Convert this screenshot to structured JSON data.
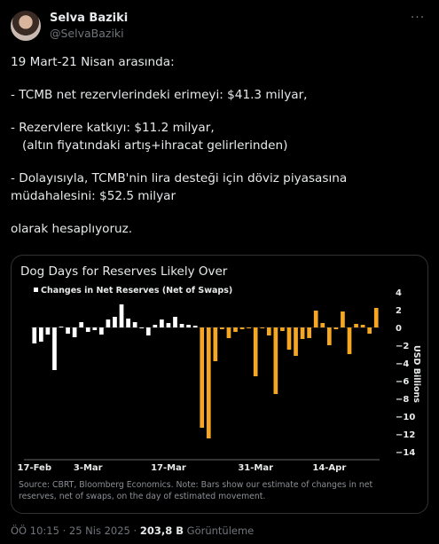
{
  "author": {
    "name": "Selva Baziki",
    "handle": "@SelvaBaziki",
    "more_icon": "more-dots-icon"
  },
  "tweet": {
    "lines": [
      "19 Mart-21 Nisan arasında:",
      "- TCMB net rezervlerindeki erimeyi: $41.3 milyar,",
      "- Rezervlere katkıyı: $11.2 milyar,",
      "   (altın fiyatındaki artış+ihracat gelirlerinden)",
      "- Dolayısıyla, TCMB'nin lira desteği için döviz piyasasına müdahalesini: $52.5 milyar",
      "olarak hesaplıyoruz."
    ]
  },
  "footer": {
    "time": "ÖÖ 10:15",
    "sep1": "·",
    "date": "25 Nis 2025",
    "sep2": "·",
    "views": "203,8 B",
    "views_label": "Görüntüleme"
  },
  "colors": {
    "bar_before": "#ffffff",
    "bar_estimated": "#f5a623",
    "text_muted": "#71767b"
  },
  "chart_data": {
    "type": "bar",
    "title": "Dog Days for Reserves Likely Over",
    "legend": "Changes in Net Reserves (Net of Swaps)",
    "legend_position": "top-left",
    "ylabel": "USD Billions",
    "ylim": [
      -14,
      4
    ],
    "yticks": [
      4,
      2,
      0,
      -2,
      -4,
      -6,
      -8,
      -10,
      -12,
      -14
    ],
    "xtick_labels": [
      "17-Feb",
      "3-Mar",
      "17-Mar",
      "31-Mar",
      "14-Apr"
    ],
    "xtick_index": [
      0,
      10,
      20,
      30,
      40
    ],
    "grid": false,
    "series": [
      {
        "values": [
          -1.8,
          -1.6,
          -0.8,
          -4.8,
          0.1,
          -0.7,
          -1.1,
          0.6,
          -0.5,
          -0.3,
          -0.8,
          0.9,
          1.2,
          2.6,
          1.0,
          0.6,
          -0.1,
          -0.9,
          0.3,
          0.9,
          0.5,
          1.2,
          0.4,
          0.3,
          0.2
        ],
        "color": "#ffffff"
      },
      {
        "values": [
          -11.3,
          -12.5,
          -3.8,
          -0.2,
          -1.2,
          -0.5,
          -0.2,
          -0.1,
          -5.5,
          -0.1,
          -0.9,
          -7.5,
          -0.4,
          -2.5,
          -3.2,
          -1.3,
          -1.2,
          1.9,
          0.5,
          -2.0,
          -0.2,
          1.8,
          -3.0,
          0.4,
          0.3,
          -0.7,
          2.2
        ],
        "color": "#f5a623"
      }
    ],
    "source_note": "Source: CBRT, Bloomberg Economics. Note: Bars show our estimate of changes in net reserves, net of swaps, on the day of estimated movement."
  }
}
